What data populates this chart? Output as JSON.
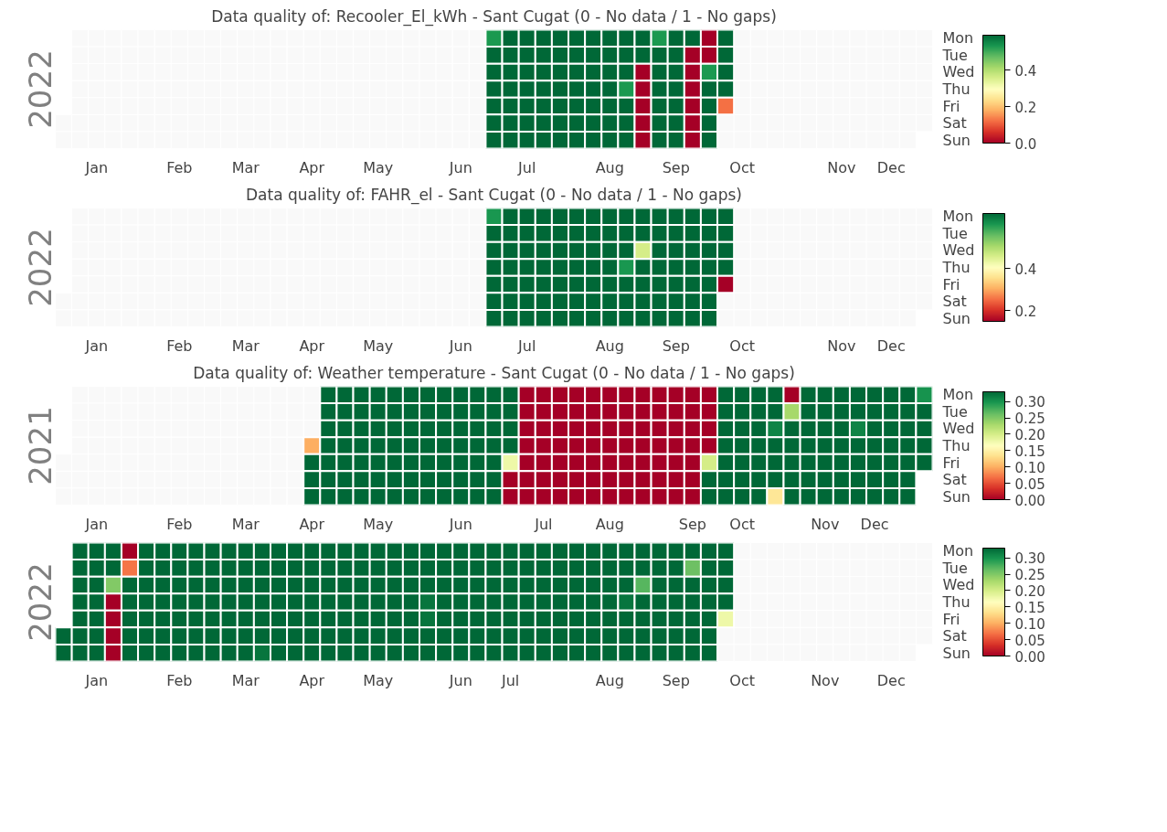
{
  "chart_data": [
    {
      "type": "heatmap",
      "title": "Data quality of: Recooler_El_kWh - Sant Cugat (0 - No data / 1 - No gaps)",
      "ylabel": "2022",
      "categories": [
        null,
        null,
        "Jan",
        null,
        null,
        null,
        null,
        "Feb",
        null,
        null,
        null,
        "Mar",
        null,
        null,
        null,
        "Apr",
        null,
        null,
        null,
        "May",
        null,
        null,
        null,
        null,
        "Jun",
        null,
        null,
        null,
        "Jul",
        null,
        null,
        null,
        null,
        "Aug",
        null,
        null,
        null,
        "Sep",
        null,
        null,
        null,
        "Oct",
        null,
        null,
        null,
        null,
        null,
        "Nov",
        null,
        null,
        "Dec",
        null,
        null
      ],
      "y_categories": [
        "Mon",
        "Tue",
        "Wed",
        "Thu",
        "Fri",
        "Sat",
        "Sun"
      ],
      "cells": [
        [
          null,
          null,
          null,
          null,
          null,
          null,
          null,
          null,
          null,
          null,
          null,
          null,
          null,
          null,
          null,
          null,
          null,
          null,
          null,
          null,
          null,
          null,
          null,
          null,
          null,
          null,
          0.53,
          0.59,
          0.59,
          0.59,
          0.59,
          0.59,
          0.59,
          0.59,
          0.59,
          0.59,
          0.53,
          0.59,
          0.59,
          0,
          0.59,
          null,
          null,
          null,
          null,
          null,
          null,
          null,
          null,
          null,
          null,
          null,
          null
        ],
        [
          null,
          null,
          null,
          null,
          null,
          null,
          null,
          null,
          null,
          null,
          null,
          null,
          null,
          null,
          null,
          null,
          null,
          null,
          null,
          null,
          null,
          null,
          null,
          null,
          null,
          null,
          0.59,
          0.59,
          0.59,
          0.59,
          0.59,
          0.59,
          0.59,
          0.59,
          0.59,
          0.59,
          0.59,
          0.59,
          0,
          0,
          0.59,
          null,
          null,
          null,
          null,
          null,
          null,
          null,
          null,
          null,
          null,
          null,
          null
        ],
        [
          null,
          null,
          null,
          null,
          null,
          null,
          null,
          null,
          null,
          null,
          null,
          null,
          null,
          null,
          null,
          null,
          null,
          null,
          null,
          null,
          null,
          null,
          null,
          null,
          null,
          null,
          0.59,
          0.59,
          0.59,
          0.59,
          0.59,
          0.59,
          0.59,
          0.59,
          0.59,
          0,
          0.59,
          0.59,
          0,
          0.53,
          0.59,
          null,
          null,
          null,
          null,
          null,
          null,
          null,
          null,
          null,
          null,
          null,
          null
        ],
        [
          null,
          null,
          null,
          null,
          null,
          null,
          null,
          null,
          null,
          null,
          null,
          null,
          null,
          null,
          null,
          null,
          null,
          null,
          null,
          null,
          null,
          null,
          null,
          null,
          null,
          null,
          0.59,
          0.59,
          0.59,
          0.59,
          0.59,
          0.59,
          0.59,
          0.59,
          0.53,
          0,
          0.59,
          0.59,
          0,
          0.59,
          0.59,
          null,
          null,
          null,
          null,
          null,
          null,
          null,
          null,
          null,
          null,
          null,
          null
        ],
        [
          null,
          null,
          null,
          null,
          null,
          null,
          null,
          null,
          null,
          null,
          null,
          null,
          null,
          null,
          null,
          null,
          null,
          null,
          null,
          null,
          null,
          null,
          null,
          null,
          null,
          null,
          0.59,
          0.59,
          0.59,
          0.59,
          0.59,
          0.59,
          0.59,
          0.59,
          0.59,
          0,
          0.59,
          0.59,
          0,
          0.59,
          0.12,
          null,
          null,
          null,
          null,
          null,
          null,
          null,
          null,
          null,
          null,
          null,
          null
        ],
        [
          null,
          null,
          null,
          null,
          null,
          null,
          null,
          null,
          null,
          null,
          null,
          null,
          null,
          null,
          null,
          null,
          null,
          null,
          null,
          null,
          null,
          null,
          null,
          null,
          null,
          null,
          0.59,
          0.59,
          0.59,
          0.59,
          0.59,
          0.59,
          0.59,
          0.59,
          0.59,
          0,
          0.59,
          0.59,
          0,
          0.59,
          null,
          null,
          null,
          null,
          null,
          null,
          null,
          null,
          null,
          null,
          null,
          null,
          null
        ],
        [
          null,
          null,
          null,
          null,
          null,
          null,
          null,
          null,
          null,
          null,
          null,
          null,
          null,
          null,
          null,
          null,
          null,
          null,
          null,
          null,
          null,
          null,
          null,
          null,
          null,
          null,
          0.59,
          0.59,
          0.59,
          0.59,
          0.59,
          0.59,
          0.59,
          0.59,
          0.59,
          0,
          0.59,
          0.59,
          0,
          0.59,
          null,
          null,
          null,
          null,
          null,
          null,
          null,
          null,
          null,
          null,
          null,
          null,
          null
        ]
      ],
      "clim": [
        0,
        0.59
      ],
      "cticks": [
        {
          "value": 0,
          "label": "0.0"
        },
        {
          "value": 0.2,
          "label": "0.2"
        },
        {
          "value": 0.4,
          "label": "0.4"
        }
      ]
    },
    {
      "type": "heatmap",
      "title": "Data quality of: FAHR_el - Sant Cugat (0 - No data / 1 - No gaps)",
      "ylabel": "2022",
      "categories": [
        null,
        null,
        "Jan",
        null,
        null,
        null,
        null,
        "Feb",
        null,
        null,
        null,
        "Mar",
        null,
        null,
        null,
        "Apr",
        null,
        null,
        null,
        "May",
        null,
        null,
        null,
        null,
        "Jun",
        null,
        null,
        null,
        "Jul",
        null,
        null,
        null,
        null,
        "Aug",
        null,
        null,
        null,
        "Sep",
        null,
        null,
        null,
        "Oct",
        null,
        null,
        null,
        null,
        null,
        "Nov",
        null,
        null,
        "Dec",
        null,
        null
      ],
      "y_categories": [
        "Mon",
        "Tue",
        "Wed",
        "Thu",
        "Fri",
        "Sat",
        "Sun"
      ],
      "cells": [
        [
          null,
          null,
          null,
          null,
          null,
          null,
          null,
          null,
          null,
          null,
          null,
          null,
          null,
          null,
          null,
          null,
          null,
          null,
          null,
          null,
          null,
          null,
          null,
          null,
          null,
          null,
          0.61,
          0.66,
          0.66,
          0.66,
          0.66,
          0.66,
          0.66,
          0.66,
          0.66,
          0.66,
          0.66,
          0.66,
          0.66,
          0.66,
          0.66,
          null,
          null,
          null,
          null,
          null,
          null,
          null,
          null,
          null,
          null,
          null,
          null
        ],
        [
          null,
          null,
          null,
          null,
          null,
          null,
          null,
          null,
          null,
          null,
          null,
          null,
          null,
          null,
          null,
          null,
          null,
          null,
          null,
          null,
          null,
          null,
          null,
          null,
          null,
          null,
          0.66,
          0.66,
          0.66,
          0.66,
          0.66,
          0.66,
          0.66,
          0.66,
          0.66,
          0.66,
          0.66,
          0.66,
          0.66,
          0.66,
          0.66,
          null,
          null,
          null,
          null,
          null,
          null,
          null,
          null,
          null,
          null,
          null,
          null
        ],
        [
          null,
          null,
          null,
          null,
          null,
          null,
          null,
          null,
          null,
          null,
          null,
          null,
          null,
          null,
          null,
          null,
          null,
          null,
          null,
          null,
          null,
          null,
          null,
          null,
          null,
          null,
          0.66,
          0.66,
          0.66,
          0.66,
          0.66,
          0.66,
          0.66,
          0.66,
          0.66,
          0.46,
          0.66,
          0.66,
          0.66,
          0.66,
          0.66,
          null,
          null,
          null,
          null,
          null,
          null,
          null,
          null,
          null,
          null,
          null,
          null
        ],
        [
          null,
          null,
          null,
          null,
          null,
          null,
          null,
          null,
          null,
          null,
          null,
          null,
          null,
          null,
          null,
          null,
          null,
          null,
          null,
          null,
          null,
          null,
          null,
          null,
          null,
          null,
          0.66,
          0.66,
          0.66,
          0.66,
          0.66,
          0.66,
          0.66,
          0.66,
          0.61,
          0.66,
          0.66,
          0.66,
          0.66,
          0.66,
          0.66,
          null,
          null,
          null,
          null,
          null,
          null,
          null,
          null,
          null,
          null,
          null,
          null
        ],
        [
          null,
          null,
          null,
          null,
          null,
          null,
          null,
          null,
          null,
          null,
          null,
          null,
          null,
          null,
          null,
          null,
          null,
          null,
          null,
          null,
          null,
          null,
          null,
          null,
          null,
          null,
          0.66,
          0.66,
          0.66,
          0.66,
          0.66,
          0.66,
          0.66,
          0.66,
          0.66,
          0.66,
          0.66,
          0.66,
          0.66,
          0.66,
          0.15,
          null,
          null,
          null,
          null,
          null,
          null,
          null,
          null,
          null,
          null,
          null,
          null
        ],
        [
          null,
          null,
          null,
          null,
          null,
          null,
          null,
          null,
          null,
          null,
          null,
          null,
          null,
          null,
          null,
          null,
          null,
          null,
          null,
          null,
          null,
          null,
          null,
          null,
          null,
          null,
          0.66,
          0.66,
          0.66,
          0.66,
          0.66,
          0.66,
          0.66,
          0.66,
          0.66,
          0.66,
          0.66,
          0.66,
          0.66,
          0.66,
          null,
          null,
          null,
          null,
          null,
          null,
          null,
          null,
          null,
          null,
          null,
          null,
          null
        ],
        [
          null,
          null,
          null,
          null,
          null,
          null,
          null,
          null,
          null,
          null,
          null,
          null,
          null,
          null,
          null,
          null,
          null,
          null,
          null,
          null,
          null,
          null,
          null,
          null,
          null,
          null,
          0.66,
          0.66,
          0.66,
          0.66,
          0.66,
          0.66,
          0.66,
          0.66,
          0.66,
          0.66,
          0.66,
          0.66,
          0.66,
          0.66,
          null,
          null,
          null,
          null,
          null,
          null,
          null,
          null,
          null,
          null,
          null,
          null,
          null
        ]
      ],
      "clim": [
        0.15,
        0.66
      ],
      "cticks": [
        {
          "value": 0.2,
          "label": "0.2"
        },
        {
          "value": 0.4,
          "label": "0.4"
        }
      ]
    },
    {
      "type": "heatmap",
      "title": "Data quality of: Weather temperature - Sant Cugat (0 - No data / 1 - No gaps)",
      "ylabel": "2021",
      "categories": [
        null,
        null,
        "Jan",
        null,
        null,
        null,
        null,
        "Feb",
        null,
        null,
        null,
        "Mar",
        null,
        null,
        null,
        "Apr",
        null,
        null,
        null,
        "May",
        null,
        null,
        null,
        null,
        "Jun",
        null,
        null,
        null,
        null,
        "Jul",
        null,
        null,
        null,
        "Aug",
        null,
        null,
        null,
        null,
        "Sep",
        null,
        null,
        "Oct",
        null,
        null,
        null,
        null,
        "Nov",
        null,
        null,
        "Dec",
        null,
        null,
        null
      ],
      "y_categories": [
        "Mon",
        "Tue",
        "Wed",
        "Thu",
        "Fri",
        "Sat",
        "Sun"
      ],
      "cells": [
        [
          null,
          null,
          null,
          null,
          null,
          null,
          null,
          null,
          null,
          null,
          null,
          null,
          null,
          null,
          null,
          null,
          0.33,
          0.33,
          0.33,
          0.33,
          0.33,
          0.33,
          0.33,
          0.33,
          0.33,
          0.33,
          0.33,
          0.33,
          0,
          0,
          0,
          0,
          0,
          0,
          0,
          0,
          0,
          0,
          0,
          0,
          0.33,
          0.33,
          0.33,
          0.33,
          0,
          0.33,
          0.33,
          0.33,
          0.33,
          0.33,
          0.33,
          0.33,
          0.3
        ],
        [
          null,
          null,
          null,
          null,
          null,
          null,
          null,
          null,
          null,
          null,
          null,
          null,
          null,
          null,
          null,
          null,
          0.33,
          0.33,
          0.33,
          0.33,
          0.33,
          0.33,
          0.33,
          0.33,
          0.33,
          0.33,
          0.33,
          0.33,
          0,
          0,
          0,
          0,
          0,
          0,
          0,
          0,
          0,
          0,
          0,
          0,
          0.33,
          0.33,
          0.33,
          0.33,
          0.23,
          0.33,
          0.33,
          0.33,
          0.33,
          0.33,
          0.33,
          0.33,
          0.33
        ],
        [
          null,
          null,
          null,
          null,
          null,
          null,
          null,
          null,
          null,
          null,
          null,
          null,
          null,
          null,
          null,
          null,
          0.33,
          0.33,
          0.33,
          0.33,
          0.33,
          0.33,
          0.33,
          0.33,
          0.33,
          0.33,
          0.33,
          0.33,
          0,
          0,
          0,
          0,
          0,
          0,
          0,
          0,
          0,
          0,
          0,
          0,
          0.33,
          0.33,
          0.33,
          0.31,
          0.33,
          0.33,
          0.33,
          0.33,
          0.31,
          0.33,
          0.33,
          0.33,
          0.33
        ],
        [
          null,
          null,
          null,
          null,
          null,
          null,
          null,
          null,
          null,
          null,
          null,
          null,
          null,
          null,
          null,
          0.1,
          0.33,
          0.33,
          0.33,
          0.33,
          0.33,
          0.33,
          0.33,
          0.33,
          0.33,
          0.33,
          0.33,
          0.33,
          0,
          0,
          0,
          0,
          0,
          0,
          0,
          0,
          0,
          0,
          0,
          0,
          0.33,
          0.33,
          0.33,
          0.33,
          0.33,
          0.33,
          0.33,
          0.33,
          0.33,
          0.33,
          0.33,
          0.33,
          0.33
        ],
        [
          null,
          null,
          null,
          null,
          null,
          null,
          null,
          null,
          null,
          null,
          null,
          null,
          null,
          null,
          null,
          0.33,
          0.33,
          0.33,
          0.33,
          0.33,
          0.33,
          0.33,
          0.33,
          0.33,
          0.33,
          0.33,
          0.33,
          0.18,
          0,
          0,
          0,
          0,
          0,
          0,
          0,
          0,
          0,
          0,
          0,
          0.2,
          0.33,
          0.33,
          0.33,
          0.33,
          0.33,
          0.33,
          0.33,
          0.33,
          0.33,
          0.33,
          0.33,
          0.33,
          0.33
        ],
        [
          null,
          null,
          null,
          null,
          null,
          null,
          null,
          null,
          null,
          null,
          null,
          null,
          null,
          null,
          null,
          0.33,
          0.33,
          0.33,
          0.33,
          0.33,
          0.33,
          0.33,
          0.33,
          0.33,
          0.33,
          0.33,
          0.33,
          0,
          0,
          0,
          0,
          0,
          0,
          0,
          0,
          0,
          0,
          0,
          0,
          0.33,
          0.33,
          0.33,
          0.33,
          0.33,
          0.33,
          0.33,
          0.33,
          0.33,
          0.33,
          0.33,
          0.33,
          0.33,
          null
        ],
        [
          null,
          null,
          null,
          null,
          null,
          null,
          null,
          null,
          null,
          null,
          null,
          null,
          null,
          null,
          null,
          0.33,
          0.33,
          0.33,
          0.33,
          0.33,
          0.33,
          0.33,
          0.33,
          0.33,
          0.33,
          0.33,
          0.33,
          0,
          0,
          0,
          0,
          0,
          0,
          0,
          0,
          0,
          0,
          0,
          0,
          0.33,
          0.33,
          0.33,
          0.33,
          0.14,
          0.33,
          0.33,
          0.33,
          0.33,
          0.33,
          0.33,
          0.33,
          0.33,
          null
        ]
      ],
      "clim": [
        0,
        0.33
      ],
      "cticks": [
        {
          "value": 0,
          "label": "0.00"
        },
        {
          "value": 0.05,
          "label": "0.05"
        },
        {
          "value": 0.1,
          "label": "0.10"
        },
        {
          "value": 0.15,
          "label": "0.15"
        },
        {
          "value": 0.2,
          "label": "0.20"
        },
        {
          "value": 0.25,
          "label": "0.25"
        },
        {
          "value": 0.3,
          "label": "0.30"
        }
      ]
    },
    {
      "type": "heatmap",
      "ylabel": "2022",
      "categories": [
        null,
        null,
        "Jan",
        null,
        null,
        null,
        null,
        "Feb",
        null,
        null,
        null,
        "Mar",
        null,
        null,
        null,
        "Apr",
        null,
        null,
        null,
        "May",
        null,
        null,
        null,
        null,
        "Jun",
        null,
        null,
        "Jul",
        null,
        null,
        null,
        null,
        null,
        "Aug",
        null,
        null,
        null,
        "Sep",
        null,
        null,
        null,
        "Oct",
        null,
        null,
        null,
        null,
        "Nov",
        null,
        null,
        null,
        "Dec",
        null,
        null
      ],
      "y_categories": [
        "Mon",
        "Tue",
        "Wed",
        "Thu",
        "Fri",
        "Sat",
        "Sun"
      ],
      "cells": [
        [
          null,
          0.33,
          0.33,
          0.33,
          0,
          0.33,
          0.33,
          0.33,
          0.33,
          0.33,
          0.33,
          0.33,
          0.33,
          0.33,
          0.33,
          0.33,
          0.33,
          0.33,
          0.33,
          0.33,
          0.33,
          0.33,
          0.33,
          0.33,
          0.33,
          0.33,
          0.33,
          0.33,
          0.33,
          0.33,
          0.33,
          0.33,
          0.33,
          0.33,
          0.33,
          0.33,
          0.33,
          0.33,
          0.33,
          0.33,
          0.33,
          null,
          null,
          null,
          null,
          null,
          null,
          null,
          null,
          null,
          null,
          null,
          null
        ],
        [
          null,
          0.33,
          0.33,
          0.33,
          0.07,
          0.33,
          0.33,
          0.33,
          0.33,
          0.33,
          0.33,
          0.33,
          0.33,
          0.33,
          0.33,
          0.33,
          0.33,
          0.33,
          0.33,
          0.33,
          0.33,
          0.33,
          0.33,
          0.33,
          0.33,
          0.33,
          0.33,
          0.33,
          0.33,
          0.33,
          0.33,
          0.33,
          0.33,
          0.33,
          0.33,
          0.33,
          0.33,
          0.33,
          0.26,
          0.33,
          0.33,
          null,
          null,
          null,
          null,
          null,
          null,
          null,
          null,
          null,
          null,
          null,
          null
        ],
        [
          null,
          0.33,
          0.33,
          0.25,
          0.33,
          0.33,
          0.33,
          0.33,
          0.33,
          0.33,
          0.33,
          0.33,
          0.33,
          0.33,
          0.33,
          0.33,
          0.33,
          0.33,
          0.33,
          0.33,
          0.33,
          0.33,
          0.33,
          0.33,
          0.33,
          0.33,
          0.33,
          0.33,
          0.33,
          0.33,
          0.33,
          0.33,
          0.33,
          0.33,
          0.33,
          0.27,
          0.33,
          0.33,
          0.33,
          0.33,
          0.33,
          null,
          null,
          null,
          null,
          null,
          null,
          null,
          null,
          null,
          null,
          null,
          null
        ],
        [
          null,
          0.33,
          0.33,
          0,
          0.33,
          0.33,
          0.33,
          0.33,
          0.33,
          0.33,
          0.33,
          0.33,
          0.33,
          0.33,
          0.33,
          0.33,
          0.33,
          0.33,
          0.33,
          0.33,
          0.33,
          0.33,
          0.32,
          0.33,
          0.33,
          0.33,
          0.33,
          0.33,
          0.33,
          0.33,
          0.33,
          0.33,
          0.33,
          0.33,
          0.32,
          0.33,
          0.33,
          0.33,
          0.33,
          0.33,
          0.33,
          null,
          null,
          null,
          null,
          null,
          null,
          null,
          null,
          null,
          null,
          null,
          null
        ],
        [
          null,
          0.33,
          0.33,
          0,
          0.33,
          0.33,
          0.33,
          0.33,
          0.33,
          0.33,
          0.33,
          0.33,
          0.33,
          0.33,
          0.33,
          0.33,
          0.33,
          0.33,
          0.33,
          0.33,
          0.33,
          0.33,
          0.32,
          0.33,
          0.33,
          0.33,
          0.33,
          0.33,
          0.33,
          0.33,
          0.33,
          0.33,
          0.33,
          0.33,
          0.33,
          0.33,
          0.33,
          0.33,
          0.33,
          0.33,
          0.18,
          null,
          null,
          null,
          null,
          null,
          null,
          null,
          null,
          null,
          null,
          null,
          null
        ],
        [
          0.33,
          0.33,
          0.33,
          0,
          0.33,
          0.33,
          0.33,
          0.33,
          0.33,
          0.33,
          0.33,
          0.33,
          0.33,
          0.33,
          0.33,
          0.33,
          0.33,
          0.33,
          0.33,
          0.33,
          0.33,
          0.33,
          0.33,
          0.33,
          0.33,
          0.33,
          0.33,
          0.33,
          0.33,
          0.33,
          0.33,
          0.33,
          0.33,
          0.33,
          0.33,
          0.33,
          0.33,
          0.33,
          0.33,
          0.33,
          null,
          null,
          null,
          null,
          null,
          null,
          null,
          null,
          null,
          null,
          null,
          null,
          null
        ],
        [
          0.33,
          0.33,
          0.33,
          0,
          0.33,
          0.33,
          0.33,
          0.33,
          0.33,
          0.33,
          0.33,
          0.33,
          0.32,
          0.33,
          0.33,
          0.33,
          0.33,
          0.33,
          0.33,
          0.33,
          0.33,
          0.33,
          0.33,
          0.33,
          0.33,
          0.33,
          0.33,
          0.33,
          0.33,
          0.33,
          0.33,
          0.33,
          0.33,
          0.33,
          0.33,
          0.33,
          0.33,
          0.33,
          0.33,
          0.33,
          null,
          null,
          null,
          null,
          null,
          null,
          null,
          null,
          null,
          null,
          null,
          null,
          null
        ]
      ],
      "clim": [
        0,
        0.33
      ],
      "cticks": [
        {
          "value": 0,
          "label": "0.00"
        },
        {
          "value": 0.05,
          "label": "0.05"
        },
        {
          "value": 0.1,
          "label": "0.10"
        },
        {
          "value": 0.15,
          "label": "0.15"
        },
        {
          "value": 0.2,
          "label": "0.20"
        },
        {
          "value": 0.25,
          "label": "0.25"
        },
        {
          "value": 0.3,
          "label": "0.30"
        }
      ]
    }
  ]
}
